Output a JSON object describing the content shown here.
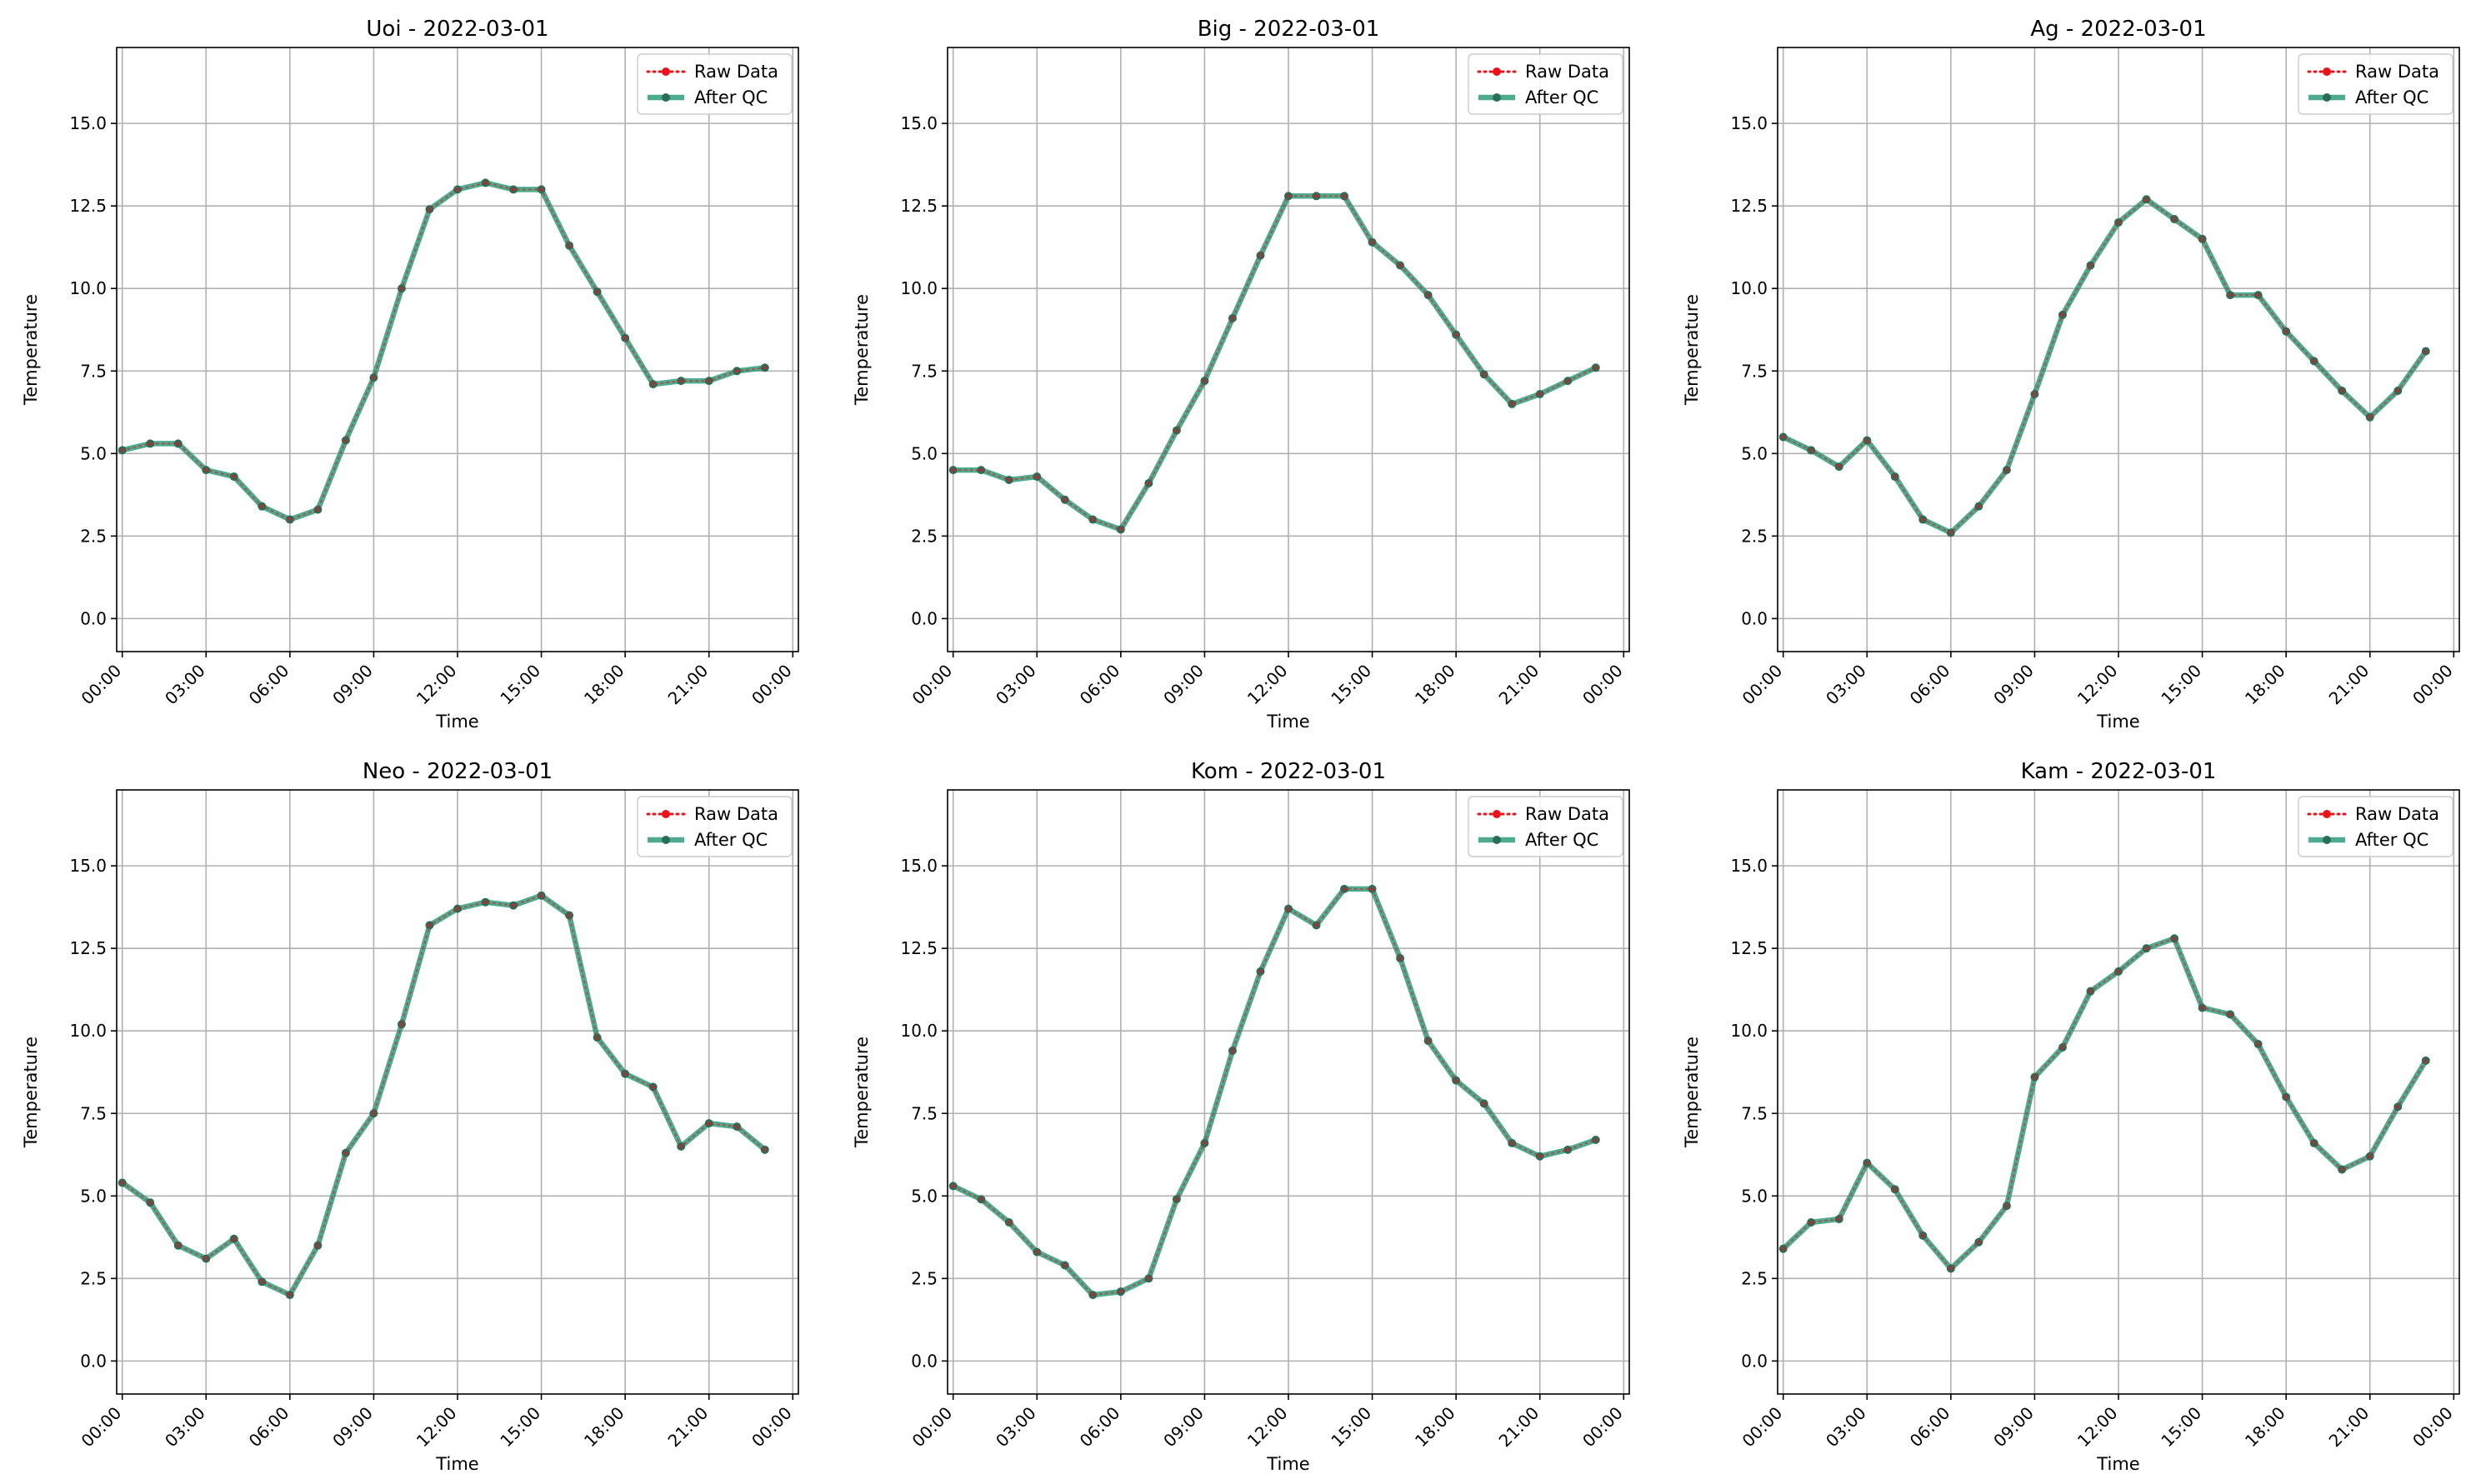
{
  "figure": {
    "background": "#ffffff"
  },
  "chart_data": [
    {
      "type": "line",
      "title": "Uoi - 2022-03-01",
      "xlabel": "Time",
      "ylabel": "Temperature",
      "x": [
        0,
        1,
        2,
        3,
        4,
        5,
        6,
        7,
        8,
        9,
        10,
        11,
        12,
        13,
        14,
        15,
        16,
        17,
        18,
        19,
        20,
        21,
        22,
        23
      ],
      "x_ticks": [
        "00:00",
        "03:00",
        "06:00",
        "09:00",
        "12:00",
        "15:00",
        "18:00",
        "21:00",
        "00:00"
      ],
      "xlim": [
        -0.2,
        24.2
      ],
      "ylim": [
        -1.0,
        17.3
      ],
      "y_ticks": [
        "0.0",
        "2.5",
        "5.0",
        "7.5",
        "10.0",
        "12.5",
        "15.0"
      ],
      "grid": true,
      "legend": "top-right",
      "series": [
        {
          "name": "Raw Data",
          "color": "#e8141a",
          "style": "dotted",
          "values": [
            5.1,
            5.3,
            5.3,
            4.5,
            4.3,
            3.4,
            3.0,
            3.3,
            5.4,
            7.3,
            10.0,
            12.4,
            13.0,
            13.2,
            13.0,
            13.0,
            11.3,
            9.9,
            8.5,
            7.1,
            7.2,
            7.2,
            7.5,
            7.6
          ]
        },
        {
          "name": "After QC",
          "color": "#2e9e7d",
          "style": "solid",
          "values": [
            5.1,
            5.3,
            5.3,
            4.5,
            4.3,
            3.4,
            3.0,
            3.3,
            5.4,
            7.3,
            10.0,
            12.4,
            13.0,
            13.2,
            13.0,
            13.0,
            11.3,
            9.9,
            8.5,
            7.1,
            7.2,
            7.2,
            7.5,
            7.6
          ]
        }
      ]
    },
    {
      "type": "line",
      "title": "Big - 2022-03-01",
      "xlabel": "Time",
      "ylabel": "Temperature",
      "x": [
        0,
        1,
        2,
        3,
        4,
        5,
        6,
        7,
        8,
        9,
        10,
        11,
        12,
        13,
        14,
        15,
        16,
        17,
        18,
        19,
        20,
        21,
        22,
        23
      ],
      "x_ticks": [
        "00:00",
        "03:00",
        "06:00",
        "09:00",
        "12:00",
        "15:00",
        "18:00",
        "21:00",
        "00:00"
      ],
      "xlim": [
        -0.2,
        24.2
      ],
      "ylim": [
        -1.0,
        17.3
      ],
      "y_ticks": [
        "0.0",
        "2.5",
        "5.0",
        "7.5",
        "10.0",
        "12.5",
        "15.0"
      ],
      "grid": true,
      "legend": "top-right",
      "series": [
        {
          "name": "Raw Data",
          "color": "#e8141a",
          "style": "dotted",
          "values": [
            4.5,
            4.5,
            4.2,
            4.3,
            3.6,
            3.0,
            2.7,
            4.1,
            5.7,
            7.2,
            9.1,
            11.0,
            12.8,
            12.8,
            12.8,
            11.4,
            10.7,
            9.8,
            8.6,
            7.4,
            6.5,
            6.8,
            7.2,
            7.6
          ]
        },
        {
          "name": "After QC",
          "color": "#2e9e7d",
          "style": "solid",
          "values": [
            4.5,
            4.5,
            4.2,
            4.3,
            3.6,
            3.0,
            2.7,
            4.1,
            5.7,
            7.2,
            9.1,
            11.0,
            12.8,
            12.8,
            12.8,
            11.4,
            10.7,
            9.8,
            8.6,
            7.4,
            6.5,
            6.8,
            7.2,
            7.6
          ]
        }
      ]
    },
    {
      "type": "line",
      "title": "Ag - 2022-03-01",
      "xlabel": "Time",
      "ylabel": "Temperature",
      "x": [
        0,
        1,
        2,
        3,
        4,
        5,
        6,
        7,
        8,
        9,
        10,
        11,
        12,
        13,
        14,
        15,
        16,
        17,
        18,
        19,
        20,
        21,
        22,
        23
      ],
      "x_ticks": [
        "00:00",
        "03:00",
        "06:00",
        "09:00",
        "12:00",
        "15:00",
        "18:00",
        "21:00",
        "00:00"
      ],
      "xlim": [
        -0.2,
        24.2
      ],
      "ylim": [
        -1.0,
        17.3
      ],
      "y_ticks": [
        "0.0",
        "2.5",
        "5.0",
        "7.5",
        "10.0",
        "12.5",
        "15.0"
      ],
      "grid": true,
      "legend": "top-right",
      "series": [
        {
          "name": "Raw Data",
          "color": "#e8141a",
          "style": "dotted",
          "values": [
            5.5,
            5.1,
            4.6,
            5.4,
            4.3,
            3.0,
            2.6,
            3.4,
            4.5,
            6.8,
            9.2,
            10.7,
            12.0,
            12.7,
            12.1,
            11.5,
            9.8,
            9.8,
            8.7,
            7.8,
            6.9,
            6.1,
            6.9,
            8.1
          ]
        },
        {
          "name": "After QC",
          "color": "#2e9e7d",
          "style": "solid",
          "values": [
            5.5,
            5.1,
            4.6,
            5.4,
            4.3,
            3.0,
            2.6,
            3.4,
            4.5,
            6.8,
            9.2,
            10.7,
            12.0,
            12.7,
            12.1,
            11.5,
            9.8,
            9.8,
            8.7,
            7.8,
            6.9,
            6.1,
            6.9,
            8.1
          ]
        }
      ]
    },
    {
      "type": "line",
      "title": "Neo - 2022-03-01",
      "xlabel": "Time",
      "ylabel": "Temperature",
      "x": [
        0,
        1,
        2,
        3,
        4,
        5,
        6,
        7,
        8,
        9,
        10,
        11,
        12,
        13,
        14,
        15,
        16,
        17,
        18,
        19,
        20,
        21,
        22,
        23
      ],
      "x_ticks": [
        "00:00",
        "03:00",
        "06:00",
        "09:00",
        "12:00",
        "15:00",
        "18:00",
        "21:00",
        "00:00"
      ],
      "xlim": [
        -0.2,
        24.2
      ],
      "ylim": [
        -1.0,
        17.3
      ],
      "y_ticks": [
        "0.0",
        "2.5",
        "5.0",
        "7.5",
        "10.0",
        "12.5",
        "15.0"
      ],
      "grid": true,
      "legend": "top-right",
      "series": [
        {
          "name": "Raw Data",
          "color": "#e8141a",
          "style": "dotted",
          "values": [
            5.4,
            4.8,
            3.5,
            3.1,
            3.7,
            2.4,
            2.0,
            3.5,
            6.3,
            7.5,
            10.2,
            13.2,
            13.7,
            13.9,
            13.8,
            14.1,
            13.5,
            9.8,
            8.7,
            8.3,
            6.5,
            7.2,
            7.1,
            6.4
          ]
        },
        {
          "name": "After QC",
          "color": "#2e9e7d",
          "style": "solid",
          "values": [
            5.4,
            4.8,
            3.5,
            3.1,
            3.7,
            2.4,
            2.0,
            3.5,
            6.3,
            7.5,
            10.2,
            13.2,
            13.7,
            13.9,
            13.8,
            14.1,
            13.5,
            9.8,
            8.7,
            8.3,
            6.5,
            7.2,
            7.1,
            6.4
          ]
        }
      ]
    },
    {
      "type": "line",
      "title": "Kom - 2022-03-01",
      "xlabel": "Time",
      "ylabel": "Temperature",
      "x": [
        0,
        1,
        2,
        3,
        4,
        5,
        6,
        7,
        8,
        9,
        10,
        11,
        12,
        13,
        14,
        15,
        16,
        17,
        18,
        19,
        20,
        21,
        22,
        23
      ],
      "x_ticks": [
        "00:00",
        "03:00",
        "06:00",
        "09:00",
        "12:00",
        "15:00",
        "18:00",
        "21:00",
        "00:00"
      ],
      "xlim": [
        -0.2,
        24.2
      ],
      "ylim": [
        -1.0,
        17.3
      ],
      "y_ticks": [
        "0.0",
        "2.5",
        "5.0",
        "7.5",
        "10.0",
        "12.5",
        "15.0"
      ],
      "grid": true,
      "legend": "top-right",
      "series": [
        {
          "name": "Raw Data",
          "color": "#e8141a",
          "style": "dotted",
          "values": [
            5.3,
            4.9,
            4.2,
            3.3,
            2.9,
            2.0,
            2.1,
            2.5,
            4.9,
            6.6,
            9.4,
            11.8,
            13.7,
            13.2,
            14.3,
            14.3,
            12.2,
            9.7,
            8.5,
            7.8,
            6.6,
            6.2,
            6.4,
            6.7
          ]
        },
        {
          "name": "After QC",
          "color": "#2e9e7d",
          "style": "solid",
          "values": [
            5.3,
            4.9,
            4.2,
            3.3,
            2.9,
            2.0,
            2.1,
            2.5,
            4.9,
            6.6,
            9.4,
            11.8,
            13.7,
            13.2,
            14.3,
            14.3,
            12.2,
            9.7,
            8.5,
            7.8,
            6.6,
            6.2,
            6.4,
            6.7
          ]
        }
      ]
    },
    {
      "type": "line",
      "title": "Kam - 2022-03-01",
      "xlabel": "Time",
      "ylabel": "Temperature",
      "x": [
        0,
        1,
        2,
        3,
        4,
        5,
        6,
        7,
        8,
        9,
        10,
        11,
        12,
        13,
        14,
        15,
        16,
        17,
        18,
        19,
        20,
        21,
        22,
        23
      ],
      "x_ticks": [
        "00:00",
        "03:00",
        "06:00",
        "09:00",
        "12:00",
        "15:00",
        "18:00",
        "21:00",
        "00:00"
      ],
      "xlim": [
        -0.2,
        24.2
      ],
      "ylim": [
        -1.0,
        17.3
      ],
      "y_ticks": [
        "0.0",
        "2.5",
        "5.0",
        "7.5",
        "10.0",
        "12.5",
        "15.0"
      ],
      "grid": true,
      "legend": "top-right",
      "series": [
        {
          "name": "Raw Data",
          "color": "#e8141a",
          "style": "dotted",
          "values": [
            3.4,
            4.2,
            4.3,
            6.0,
            5.2,
            3.8,
            2.8,
            3.6,
            4.7,
            8.6,
            9.5,
            11.2,
            11.8,
            12.5,
            12.8,
            10.7,
            10.5,
            9.6,
            8.0,
            6.6,
            5.8,
            6.2,
            7.7,
            9.1
          ]
        },
        {
          "name": "After QC",
          "color": "#2e9e7d",
          "style": "solid",
          "values": [
            3.4,
            4.2,
            4.3,
            6.0,
            5.2,
            3.8,
            2.8,
            3.6,
            4.7,
            8.6,
            9.5,
            11.2,
            11.8,
            12.5,
            12.8,
            10.7,
            10.5,
            9.6,
            8.0,
            6.6,
            5.8,
            6.2,
            7.7,
            9.1
          ]
        }
      ]
    }
  ]
}
